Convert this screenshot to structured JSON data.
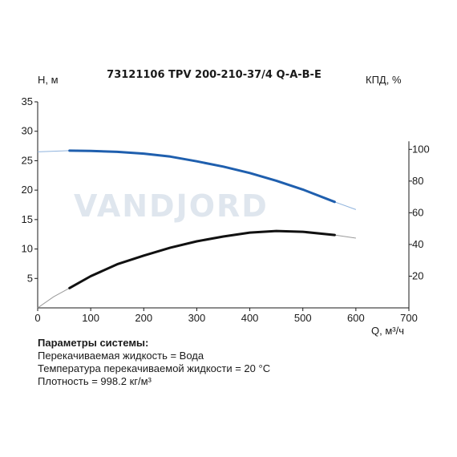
{
  "chart_data": {
    "type": "line",
    "title": "73121106 TPV 200-210-37/4 Q-A-B-E",
    "xlabel": "Q, м³/ч",
    "ylabel": "Н, м",
    "y2label": "КПД, %",
    "xlim": [
      0,
      700
    ],
    "ylim": [
      0,
      35
    ],
    "y2lim": [
      0,
      130
    ],
    "x_ticks": [
      "0",
      "100",
      "200",
      "300",
      "400",
      "500",
      "600",
      "700"
    ],
    "y_ticks": [
      "5",
      "10",
      "15",
      "20",
      "25",
      "30",
      "35"
    ],
    "y2_ticks": [
      "20",
      "40",
      "60",
      "80",
      "100"
    ],
    "watermark": "VANDJORD",
    "series": [
      {
        "key": "head",
        "axis": "left",
        "color": "#1f5fae",
        "thin_color": "#8fb3dd",
        "operating_range": [
          60,
          560
        ],
        "points": [
          [
            0,
            26.5
          ],
          [
            60,
            26.7
          ],
          [
            100,
            26.65
          ],
          [
            150,
            26.5
          ],
          [
            200,
            26.2
          ],
          [
            250,
            25.7
          ],
          [
            300,
            24.9
          ],
          [
            350,
            24.0
          ],
          [
            400,
            22.9
          ],
          [
            450,
            21.6
          ],
          [
            500,
            20.1
          ],
          [
            560,
            18.0
          ],
          [
            600,
            16.7
          ]
        ]
      },
      {
        "key": "efficiency",
        "axis": "right",
        "color": "#111111",
        "thin_color": "#9a9a9a",
        "operating_range": [
          60,
          560
        ],
        "points": [
          [
            0,
            0
          ],
          [
            30,
            7
          ],
          [
            60,
            12.5
          ],
          [
            100,
            20
          ],
          [
            150,
            27.5
          ],
          [
            200,
            33
          ],
          [
            250,
            38
          ],
          [
            300,
            42
          ],
          [
            350,
            45
          ],
          [
            400,
            47.5
          ],
          [
            450,
            48.5
          ],
          [
            500,
            48
          ],
          [
            560,
            46
          ],
          [
            600,
            44
          ]
        ]
      }
    ]
  },
  "params": {
    "title": "Параметры системы:",
    "lines": [
      "Перекачиваемая жидкость = Вода",
      "Температура перекачиваемой жидкости = 20 °C",
      "Плотность = 998.2 кг/м³"
    ]
  }
}
